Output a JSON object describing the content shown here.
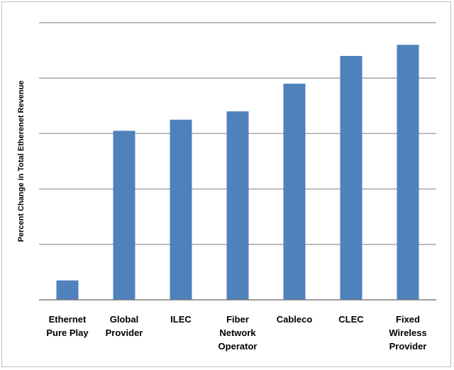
{
  "chart_data": {
    "type": "bar",
    "title": "",
    "xlabel": "",
    "ylabel": "Percent Change in Total Etherenet Revenue",
    "categories": [
      [
        "Ethernet",
        "Pure Play"
      ],
      [
        "Global",
        "Provider"
      ],
      [
        "ILEC"
      ],
      [
        "Fiber",
        "Network",
        "Operator"
      ],
      [
        "Cableco"
      ],
      [
        "CLEC"
      ],
      [
        "Fixed",
        "Wireless",
        "Provider"
      ]
    ],
    "values": [
      7,
      61,
      65,
      68,
      78,
      88,
      92
    ],
    "ylim": [
      0,
      100
    ],
    "grid": true,
    "legend": "none",
    "colors": {
      "bar": "#4f81bd",
      "grid": "#a6a6a6",
      "axis": "#7f7f7f"
    }
  }
}
